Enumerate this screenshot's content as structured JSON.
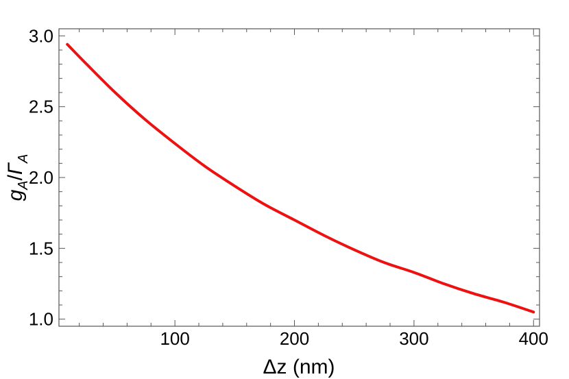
{
  "chart_data": {
    "type": "line",
    "title": "",
    "xlabel": "Δz (nm)",
    "ylabel": {
      "g": "g",
      "sub1": "A",
      "slash": "/",
      "gamma": "Γ",
      "sub2": "A"
    },
    "xlim": [
      3,
      405
    ],
    "ylim": [
      0.95,
      3.05
    ],
    "x_ticks": [
      100,
      200,
      300,
      400
    ],
    "x_tick_labels": [
      "100",
      "200",
      "300",
      "400"
    ],
    "y_ticks": [
      1.0,
      1.5,
      2.0,
      2.5,
      3.0
    ],
    "y_tick_labels": [
      "1.0",
      "1.5",
      "2.0",
      "2.5",
      "3.0"
    ],
    "grid": false,
    "frame": true,
    "series": [
      {
        "color": "#ee1111",
        "x": [
          10,
          25,
          50,
          75,
          100,
          125,
          150,
          175,
          200,
          225,
          250,
          275,
          300,
          325,
          350,
          375,
          400
        ],
        "y": [
          2.94,
          2.81,
          2.6,
          2.41,
          2.24,
          2.08,
          1.94,
          1.81,
          1.7,
          1.59,
          1.49,
          1.4,
          1.33,
          1.25,
          1.18,
          1.12,
          1.05
        ]
      }
    ]
  }
}
